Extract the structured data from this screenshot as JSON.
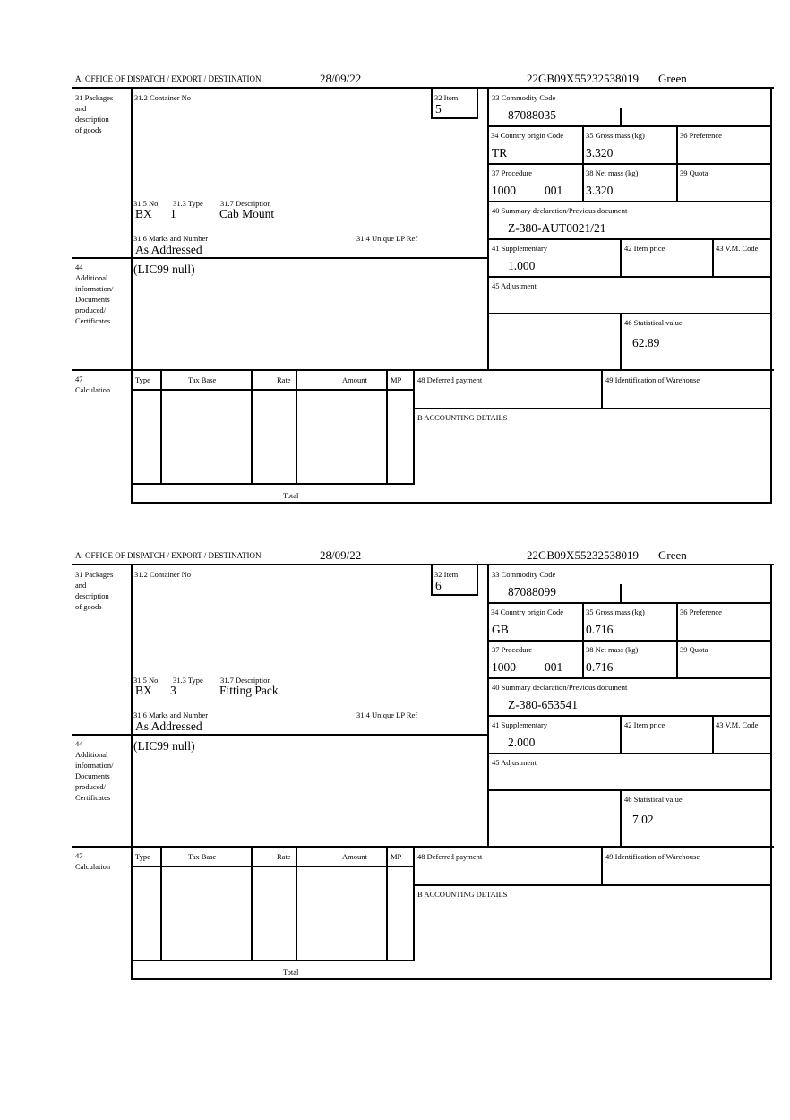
{
  "labels": {
    "office": "A.  OFFICE OF DISPATCH / EXPORT / DESTINATION",
    "packages": "31 Packages\nand\ndescription\nof goods",
    "container_no": "31.2 Container No",
    "item": "32 Item",
    "no": "31.5 No",
    "type": "31.3 Type",
    "description": "31.7 Description",
    "marks": "31.6 Marks and Number",
    "unique_lp": "31.4 Unique LP Ref",
    "additional_info": "44\nAdditional\ninformation/\nDocuments\nproduced/\nCertificates",
    "commodity_code": "33 Commodity Code",
    "country_origin": "34 Country origin Code",
    "gross_mass": "35 Gross mass (kg)",
    "preference": "36 Preference",
    "procedure": "37 Procedure",
    "net_mass": "38 Net mass (kg)",
    "quota": "39 Quota",
    "summary_decl": "40 Summary declaration/Previous document",
    "supplementary": "41 Supplementary",
    "item_price": "42 Item price",
    "vm_code": "43 V.M. Code",
    "adjustment": "45 Adjustment",
    "statistical_value": "46 Statistical value",
    "calculation": "47\nCalculation",
    "calc_type": "Type",
    "tax_base": "Tax Base",
    "rate": "Rate",
    "amount": "Amount",
    "mp": "MP",
    "deferred_payment": "48 Deferred payment",
    "warehouse": "49 Identification of Warehouse",
    "accounting": "B ACCOUNTING DETAILS",
    "total": "Total"
  },
  "forms": [
    {
      "date": "28/09/22",
      "reference": "22GB09X55232538019",
      "route": "Green",
      "item": "5",
      "pkg_kind": "BX",
      "pkg_count": "1",
      "description": "Cab Mount",
      "marks": "As Addressed",
      "additional_info": "(LIC99 null)",
      "commodity_code": "87088035",
      "country_origin": "TR",
      "gross_mass": "3.320",
      "procedure": "1000",
      "procedure_add": "001",
      "net_mass": "3.320",
      "summary_decl": "Z-380-AUT0021/21",
      "supplementary": "1.000",
      "statistical_value": "62.89"
    },
    {
      "date": "28/09/22",
      "reference": "22GB09X55232538019",
      "route": "Green",
      "item": "6",
      "pkg_kind": "BX",
      "pkg_count": "3",
      "description": "Fitting Pack",
      "marks": "As Addressed",
      "additional_info": "(LIC99 null)",
      "commodity_code": "87088099",
      "country_origin": "GB",
      "gross_mass": "0.716",
      "procedure": "1000",
      "procedure_add": "001",
      "net_mass": "0.716",
      "summary_decl": "Z-380-653541",
      "supplementary": "2.000",
      "statistical_value": "7.02"
    }
  ]
}
